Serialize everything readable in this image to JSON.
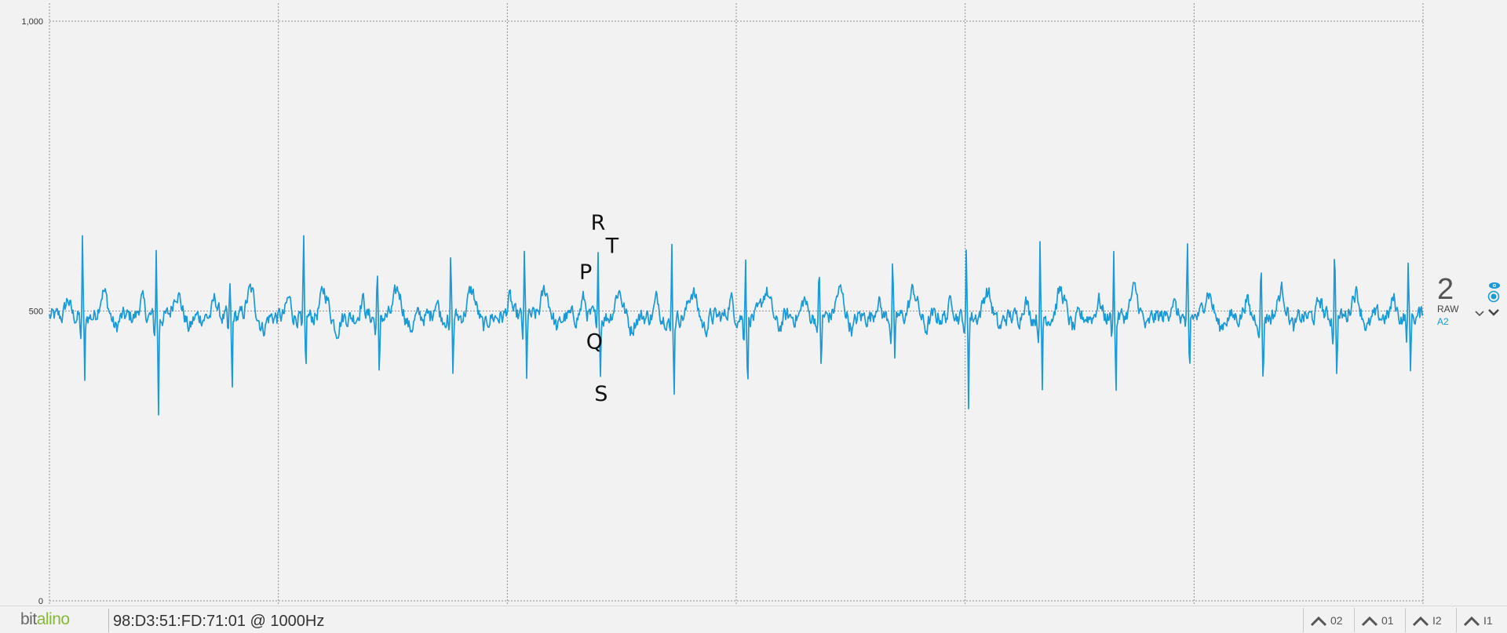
{
  "chart_data": {
    "type": "line",
    "ylim": [
      0,
      1000
    ],
    "y_ticks": [
      "1,000",
      "500",
      "0"
    ],
    "y_tick_values": [
      1000,
      500,
      0
    ],
    "grid": true,
    "x_grid_divisions": 6,
    "series": [
      {
        "color": "#1a9ad6",
        "baseline": 490,
        "beat_count": 19,
        "r_peak_values": [
          630,
          605,
          545,
          625,
          595,
          610,
          605,
          605,
          620,
          610,
          590,
          600,
          605,
          620,
          620,
          615,
          600,
          625,
          580
        ],
        "s_trough_values": [
          370,
          315,
          345,
          385,
          365,
          385,
          385,
          390,
          350,
          355,
          385,
          395,
          345,
          355,
          350,
          380,
          360,
          385,
          395
        ]
      }
    ],
    "annotations": [
      {
        "text": "P",
        "x_beat": 7,
        "value": 555
      },
      {
        "text": "R",
        "x_beat": 7,
        "value": 640
      },
      {
        "text": "T",
        "x_beat": 7,
        "value": 600
      },
      {
        "text": "Q",
        "x_beat": 7,
        "value": 435
      },
      {
        "text": "S",
        "x_beat": 7,
        "value": 345
      }
    ]
  },
  "channel": {
    "number": "2",
    "mode": "RAW",
    "source": "A2",
    "eye_icon": "eye-icon",
    "record_icon": "radio-target-icon",
    "collapse_icon": "chevron-down-icon"
  },
  "status_bar": {
    "logo_part1": "bit",
    "logo_part2": "alino",
    "device_info": "98:D3:51:FD:71:01 @ 1000Hz",
    "tabs": [
      {
        "label": "02",
        "icon": "chevron-up-icon"
      },
      {
        "label": "01",
        "icon": "chevron-up-icon"
      },
      {
        "label": "I2",
        "icon": "chevron-up-icon"
      },
      {
        "label": "I1",
        "icon": "chevron-up-icon"
      }
    ]
  },
  "colors": {
    "signal": "#1a9ad6",
    "background": "#f2f2f2",
    "grid": "#8a8a8a",
    "logo_accent": "#86b83a"
  }
}
